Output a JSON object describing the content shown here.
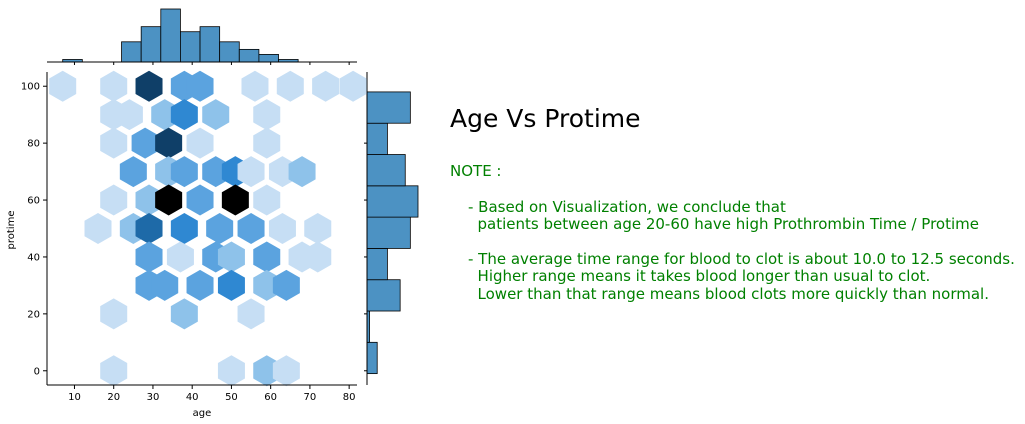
{
  "chart_data": {
    "type": "hexbin-jointplot",
    "xlabel": "age",
    "ylabel": "protime",
    "xlim": [
      3,
      82
    ],
    "ylim": [
      -5,
      105
    ],
    "x_ticks": [
      10,
      20,
      30,
      40,
      50,
      60,
      70,
      80
    ],
    "y_ticks": [
      0,
      20,
      40,
      60,
      80,
      100
    ],
    "hexbins": [
      {
        "age": 7,
        "protime": 100,
        "count": 1
      },
      {
        "age": 20,
        "protime": 100,
        "count": 1
      },
      {
        "age": 29,
        "protime": 100,
        "count": 6
      },
      {
        "age": 38,
        "protime": 100,
        "count": 3
      },
      {
        "age": 42,
        "protime": 100,
        "count": 3
      },
      {
        "age": 56,
        "protime": 100,
        "count": 1
      },
      {
        "age": 65,
        "protime": 100,
        "count": 1
      },
      {
        "age": 74,
        "protime": 100,
        "count": 1
      },
      {
        "age": 81,
        "protime": 100,
        "count": 1
      },
      {
        "age": 20,
        "protime": 90,
        "count": 1
      },
      {
        "age": 24,
        "protime": 90,
        "count": 1
      },
      {
        "age": 33,
        "protime": 90,
        "count": 2
      },
      {
        "age": 38,
        "protime": 90,
        "count": 4
      },
      {
        "age": 46,
        "protime": 90,
        "count": 2
      },
      {
        "age": 59,
        "protime": 90,
        "count": 1
      },
      {
        "age": 20,
        "protime": 80,
        "count": 1
      },
      {
        "age": 28,
        "protime": 80,
        "count": 3
      },
      {
        "age": 34,
        "protime": 80,
        "count": 6
      },
      {
        "age": 42,
        "protime": 80,
        "count": 1
      },
      {
        "age": 59,
        "protime": 80,
        "count": 1
      },
      {
        "age": 25,
        "protime": 70,
        "count": 3
      },
      {
        "age": 34,
        "protime": 70,
        "count": 2
      },
      {
        "age": 38,
        "protime": 70,
        "count": 3
      },
      {
        "age": 46,
        "protime": 70,
        "count": 3
      },
      {
        "age": 51,
        "protime": 70,
        "count": 4
      },
      {
        "age": 55,
        "protime": 70,
        "count": 1
      },
      {
        "age": 63,
        "protime": 70,
        "count": 1
      },
      {
        "age": 68,
        "protime": 70,
        "count": 2
      },
      {
        "age": 20,
        "protime": 60,
        "count": 1
      },
      {
        "age": 29,
        "protime": 60,
        "count": 2
      },
      {
        "age": 34,
        "protime": 60,
        "count": 7
      },
      {
        "age": 42,
        "protime": 60,
        "count": 3
      },
      {
        "age": 51,
        "protime": 60,
        "count": 7
      },
      {
        "age": 59,
        "protime": 60,
        "count": 1
      },
      {
        "age": 16,
        "protime": 50,
        "count": 1
      },
      {
        "age": 25,
        "protime": 50,
        "count": 2
      },
      {
        "age": 29,
        "protime": 50,
        "count": 5
      },
      {
        "age": 38,
        "protime": 50,
        "count": 4
      },
      {
        "age": 47,
        "protime": 50,
        "count": 3
      },
      {
        "age": 55,
        "protime": 50,
        "count": 3
      },
      {
        "age": 63,
        "protime": 50,
        "count": 1
      },
      {
        "age": 72,
        "protime": 50,
        "count": 1
      },
      {
        "age": 29,
        "protime": 40,
        "count": 3
      },
      {
        "age": 37,
        "protime": 40,
        "count": 1
      },
      {
        "age": 46,
        "protime": 40,
        "count": 3
      },
      {
        "age": 50,
        "protime": 40,
        "count": 2
      },
      {
        "age": 59,
        "protime": 40,
        "count": 3
      },
      {
        "age": 68,
        "protime": 40,
        "count": 1
      },
      {
        "age": 72,
        "protime": 40,
        "count": 1
      },
      {
        "age": 29,
        "protime": 30,
        "count": 3
      },
      {
        "age": 33,
        "protime": 30,
        "count": 3
      },
      {
        "age": 42,
        "protime": 30,
        "count": 3
      },
      {
        "age": 50,
        "protime": 30,
        "count": 4
      },
      {
        "age": 59,
        "protime": 30,
        "count": 2
      },
      {
        "age": 64,
        "protime": 30,
        "count": 3
      },
      {
        "age": 20,
        "protime": 20,
        "count": 1
      },
      {
        "age": 38,
        "protime": 20,
        "count": 2
      },
      {
        "age": 55,
        "protime": 20,
        "count": 1
      },
      {
        "age": 20,
        "protime": 0,
        "count": 1
      },
      {
        "age": 50,
        "protime": 0,
        "count": 1
      },
      {
        "age": 59,
        "protime": 0,
        "count": 2
      },
      {
        "age": 64,
        "protime": 0,
        "count": 1
      }
    ],
    "hexbins_max_count": 7,
    "top_histogram": {
      "variable": "age",
      "bin_edges": [
        7,
        12,
        17,
        22,
        27,
        32,
        37,
        42,
        47,
        52,
        57,
        62,
        67,
        72,
        77
      ],
      "counts": [
        1,
        0,
        0,
        8,
        14,
        21,
        12,
        14,
        8,
        5,
        3,
        1,
        0,
        0
      ]
    },
    "right_histogram": {
      "variable": "protime",
      "bin_edges": [
        -1,
        10,
        21,
        32,
        43,
        54,
        65,
        76,
        87,
        98
      ],
      "counts": [
        4,
        1,
        13,
        8,
        17,
        20,
        15,
        8,
        17
      ]
    },
    "bar_color": "#4c92c3",
    "hex_colormap": [
      "#ffffff",
      "#c6def4",
      "#8ec2ea",
      "#5ba3df",
      "#2f88d2",
      "#1e6aa8",
      "#0f3f68",
      "#000000"
    ]
  },
  "annotation": {
    "title": "Age Vs Protime",
    "note_heading": "NOTE :",
    "note_line1": "- Based on Visualization, we conclude that",
    "note_line2": "  patients between age 20-60 have high Prothrombin Time / Protime",
    "note_line3": "- The average time range for blood to clot is about 10.0 to 12.5 seconds.",
    "note_line4": "  Higher range means it takes blood longer than usual to clot.",
    "note_line5": "  Lower than that range means blood clots more quickly than normal.",
    "text_color": "#008000"
  }
}
